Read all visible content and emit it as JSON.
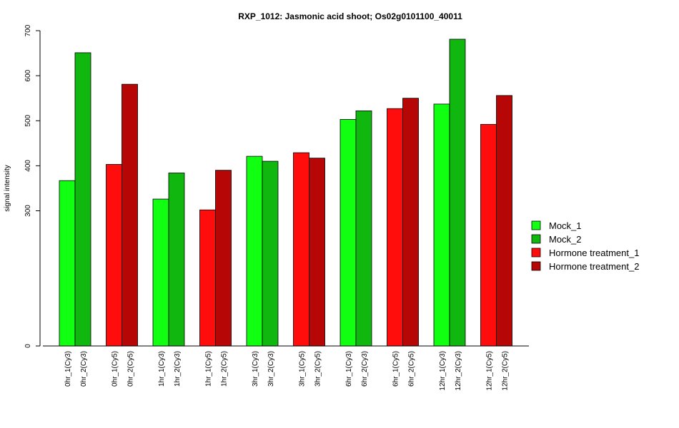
{
  "chart_data": {
    "type": "bar",
    "title": "RXP_1012: Jasmonic acid shoot; Os02g0101100_40011",
    "ylabel": "signal intensity",
    "xlabel": "",
    "ylim": [
      0,
      700
    ],
    "y_ticks": [
      "0",
      "300",
      "400",
      "500",
      "600",
      "700"
    ],
    "grid": false,
    "legend_position": "right",
    "groups": [
      {
        "series": "Mock",
        "labels": [
          "0hr_1(Cy3)",
          "0hr_2(Cy3)"
        ],
        "values": [
          367,
          651
        ]
      },
      {
        "series": "Hormone treatment",
        "labels": [
          "0hr_1(Cy5)",
          "0hr_2(Cy5)"
        ],
        "values": [
          403,
          581
        ]
      },
      {
        "series": "Mock",
        "labels": [
          "1hr_1(Cy3)",
          "1hr_2(Cy3)"
        ],
        "values": [
          326,
          384
        ]
      },
      {
        "series": "Hormone treatment",
        "labels": [
          "1hr_1(Cy5)",
          "1hr_2(Cy5)"
        ],
        "values": [
          302,
          390
        ]
      },
      {
        "series": "Mock",
        "labels": [
          "3hr_1(Cy3)",
          "3hr_2(Cy3)"
        ],
        "values": [
          421,
          410
        ]
      },
      {
        "series": "Hormone treatment",
        "labels": [
          "3hr_1(Cy5)",
          "3hr_2(Cy5)"
        ],
        "values": [
          429,
          417
        ]
      },
      {
        "series": "Mock",
        "labels": [
          "6hr_1(Cy3)",
          "6hr_2(Cy3)"
        ],
        "values": [
          503,
          522
        ]
      },
      {
        "series": "Hormone treatment",
        "labels": [
          "6hr_1(Cy5)",
          "6hr_2(Cy5)"
        ],
        "values": [
          527,
          550
        ]
      },
      {
        "series": "Mock",
        "labels": [
          "12hr_1(Cy3)",
          "12hr_2(Cy3)"
        ],
        "values": [
          537,
          681
        ]
      },
      {
        "series": "Hormone treatment",
        "labels": [
          "12hr_1(Cy5)",
          "12hr_2(Cy5)"
        ],
        "values": [
          492,
          556
        ]
      }
    ],
    "legend": [
      {
        "name": "Mock_1",
        "color": "#11FF11"
      },
      {
        "name": "Mock_2",
        "color": "#0FB70F"
      },
      {
        "name": "Hormone treatment_1",
        "color": "#FF0D0D"
      },
      {
        "name": "Hormone treatment_2",
        "color": "#B70606"
      }
    ],
    "colors": {
      "Mock": [
        "#11FF11",
        "#0FB70F"
      ],
      "Hormone treatment": [
        "#FF0D0D",
        "#B70606"
      ]
    }
  }
}
